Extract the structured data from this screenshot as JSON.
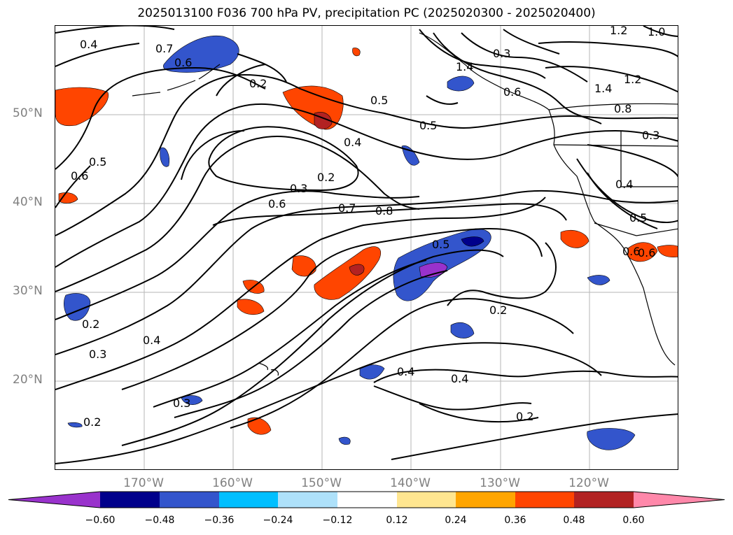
{
  "title": "2025013100 F036 700 hPa PV, precipitation PC (2025020300 - 2025020400)",
  "lat_labels": [
    "50°N",
    "40°N",
    "30°N",
    "20°N"
  ],
  "lon_labels": [
    "170°W",
    "160°W",
    "150°W",
    "140°W",
    "130°W",
    "120°W"
  ],
  "colorbar": {
    "ticks": [
      "−0.60",
      "−0.48",
      "−0.36",
      "−0.24",
      "−0.12",
      "0.12",
      "0.24",
      "0.36",
      "0.48",
      "0.60"
    ],
    "colors": [
      "#9932CC",
      "#00008B",
      "#3355CC",
      "#00BFFF",
      "#AEE1FA",
      "#FFFFFF",
      "#FFE690",
      "#FFA500",
      "#FF4500",
      "#B22222",
      "#FF88AA"
    ]
  },
  "contour_labels": [
    "0.4",
    "0.7",
    "0.6",
    "0.2",
    "0.5",
    "0.5",
    "0.4",
    "0.2",
    "0.3",
    "0.6",
    "0.7",
    "0.8",
    "0.5",
    "0.6",
    "0.5",
    "0.6",
    "0.2",
    "0.4",
    "0.4",
    "0.3",
    "0.3",
    "0.2",
    "0.2",
    "0.4",
    "0.2",
    "1.2",
    "1.0",
    "1.4",
    "1.2",
    "0.8",
    "0.3",
    "0.4",
    "0.5",
    "0.6",
    "0.6",
    "1.4",
    "0.3"
  ]
}
